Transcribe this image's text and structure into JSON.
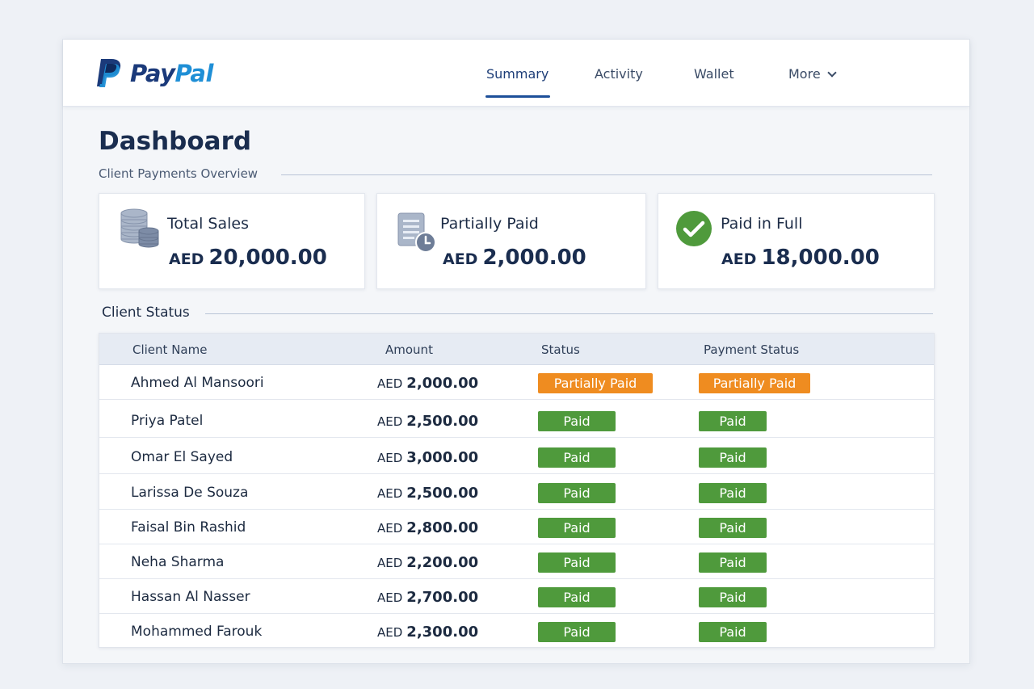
{
  "brand": {
    "name_part1": "Pay",
    "name_part2": "Pal",
    "primary_color": "#1b3a7a",
    "secondary_color": "#1f8fd6"
  },
  "nav": {
    "items": [
      {
        "label": "Summary",
        "active": true
      },
      {
        "label": "Activity",
        "active": false
      },
      {
        "label": "Wallet",
        "active": false
      },
      {
        "label": "More",
        "active": false
      }
    ]
  },
  "page": {
    "title": "Dashboard",
    "subtitle": "Client Payments Overview"
  },
  "cards": [
    {
      "label": "Total Sales",
      "currency": "AED",
      "value": "20,000.00",
      "icon": "coins-stack-icon"
    },
    {
      "label": "Partially Paid",
      "currency": "AED",
      "value": "2,000.00",
      "icon": "invoice-clock-icon"
    },
    {
      "label": "Paid in Full",
      "currency": "AED",
      "value": "18,000.00",
      "icon": "check-circle-icon"
    }
  ],
  "clients_section": {
    "title": "Client Status",
    "columns": [
      "Client Name",
      "Amount",
      "Status",
      "Payment Status"
    ],
    "rows": [
      {
        "name": "Ahmed Al Mansoori",
        "currency": "AED",
        "amount": "2,000.00",
        "status": "Partially Paid",
        "payment_status": "Partially Paid"
      },
      {
        "name": "Priya Patel",
        "currency": "AED",
        "amount": "2,500.00",
        "status": "Paid",
        "payment_status": "Paid"
      },
      {
        "name": "Omar El Sayed",
        "currency": "AED",
        "amount": "3,000.00",
        "status": "Paid",
        "payment_status": "Paid"
      },
      {
        "name": "Larissa De Souza",
        "currency": "AED",
        "amount": "2,500.00",
        "status": "Paid",
        "payment_status": "Paid"
      },
      {
        "name": "Faisal Bin Rashid",
        "currency": "AED",
        "amount": "2,800.00",
        "status": "Paid",
        "payment_status": "Paid"
      },
      {
        "name": "Neha Sharma",
        "currency": "AED",
        "amount": "2,200.00",
        "status": "Paid",
        "payment_status": "Paid"
      },
      {
        "name": "Hassan Al Nasser",
        "currency": "AED",
        "amount": "2,700.00",
        "status": "Paid",
        "payment_status": "Paid"
      },
      {
        "name": "Mohammed Farouk",
        "currency": "AED",
        "amount": "2,300.00",
        "status": "Paid",
        "payment_status": "Paid"
      }
    ]
  },
  "colors": {
    "paid_badge": "#4f9a3c",
    "partial_badge": "#ef8c20",
    "nav_active": "#1d4f99"
  }
}
